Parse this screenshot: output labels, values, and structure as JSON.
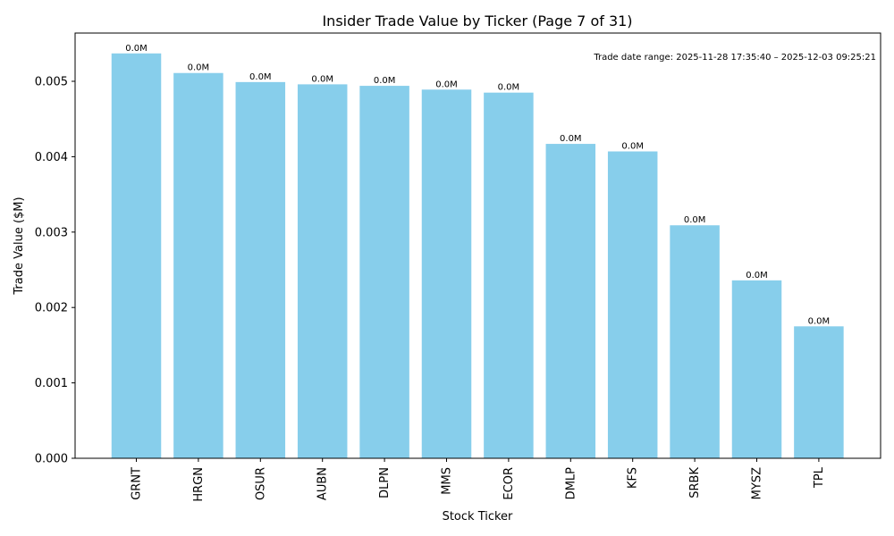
{
  "chart_data": {
    "type": "bar",
    "title": "Insider Trade Value by Ticker (Page 7 of 31)",
    "xlabel": "Stock Ticker",
    "ylabel": "Trade Value ($M)",
    "categories": [
      "GRNT",
      "HRGN",
      "OSUR",
      "AUBN",
      "DLPN",
      "MMS",
      "ECOR",
      "DMLP",
      "KFS",
      "SRBK",
      "MYSZ",
      "TPL"
    ],
    "values": [
      0.00537,
      0.00511,
      0.00499,
      0.00496,
      0.00494,
      0.00489,
      0.00485,
      0.00417,
      0.00407,
      0.00309,
      0.00236,
      0.00175
    ],
    "bar_labels": [
      "0.0M",
      "0.0M",
      "0.0M",
      "0.0M",
      "0.0M",
      "0.0M",
      "0.0M",
      "0.0M",
      "0.0M",
      "0.0M",
      "0.0M",
      "0.0M"
    ],
    "y_ticks": [
      "0.000",
      "0.001",
      "0.002",
      "0.003",
      "0.004",
      "0.005"
    ],
    "ylim": [
      0,
      0.00564
    ],
    "bar_color": "#87CEEB",
    "annotation": "Trade date range: 2025-11-28 17:35:40 – 2025-12-03 09:25:21",
    "grid": false,
    "legend": "none"
  }
}
